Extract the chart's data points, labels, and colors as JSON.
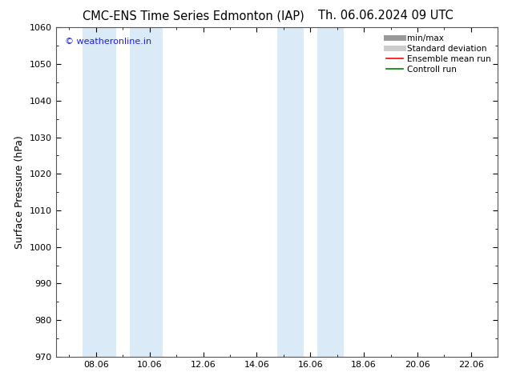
{
  "title": "CMC-ENS Time Series Edmonton (IAP)",
  "title2": "Th. 06.06.2024 09 UTC",
  "ylabel": "Surface Pressure (hPa)",
  "ylim": [
    970,
    1060
  ],
  "yticks": [
    970,
    980,
    990,
    1000,
    1010,
    1020,
    1030,
    1040,
    1050,
    1060
  ],
  "xtick_labels": [
    "08.06",
    "10.06",
    "12.06",
    "14.06",
    "16.06",
    "18.06",
    "20.06",
    "22.06"
  ],
  "xtick_positions": [
    8,
    10,
    12,
    14,
    16,
    18,
    20,
    22
  ],
  "xlim": [
    6.5,
    23.0
  ],
  "shade_bands": [
    {
      "xmin": 7.5,
      "xmax": 9.0,
      "color": "#daeaf7"
    },
    {
      "xmin": 9.0,
      "xmax": 10.5,
      "color": "#daeaf7"
    },
    {
      "xmin": 14.8,
      "xmax": 16.0,
      "color": "#daeaf7"
    },
    {
      "xmin": 16.0,
      "xmax": 17.0,
      "color": "#daeaf7"
    }
  ],
  "watermark": "© weatheronline.in",
  "watermark_color": "#1a1aff",
  "background_color": "#ffffff",
  "legend_items": [
    {
      "label": "min/max",
      "color": "#999999",
      "lw": 5,
      "style": "solid"
    },
    {
      "label": "Standard deviation",
      "color": "#cccccc",
      "lw": 5,
      "style": "solid"
    },
    {
      "label": "Ensemble mean run",
      "color": "#ff0000",
      "lw": 1.2,
      "style": "solid"
    },
    {
      "label": "Controll run",
      "color": "#008000",
      "lw": 1.2,
      "style": "solid"
    }
  ],
  "title_fontsize": 10.5,
  "ylabel_fontsize": 9,
  "tick_fontsize": 8,
  "legend_fontsize": 7.5
}
